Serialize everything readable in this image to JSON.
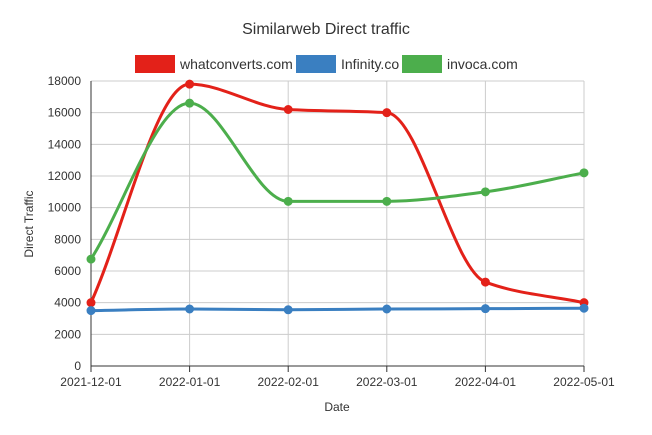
{
  "chart_data": {
    "type": "line",
    "title": "Similarweb Direct traffic",
    "xlabel": "Date",
    "ylabel": "Direct Traffic",
    "x": [
      "2021-12-01",
      "2022-01-01",
      "2022-02-01",
      "2022-03-01",
      "2022-04-01",
      "2022-05-01"
    ],
    "ylim": [
      0,
      18000
    ],
    "yticks": [
      0,
      2000,
      4000,
      6000,
      8000,
      10000,
      12000,
      14000,
      16000,
      18000
    ],
    "grid": true,
    "legend_position": "top",
    "series": [
      {
        "name": "whatconverts.com",
        "color": "#e32119",
        "values": [
          4000,
          17800,
          16200,
          16000,
          5300,
          4000
        ]
      },
      {
        "name": "Infinity.co",
        "color": "#3a7fc1",
        "values": [
          3500,
          3600,
          3550,
          3600,
          3620,
          3650
        ]
      },
      {
        "name": "invoca.com",
        "color": "#4cae4c",
        "values": [
          6750,
          16600,
          10400,
          10400,
          11000,
          12200
        ]
      }
    ]
  }
}
